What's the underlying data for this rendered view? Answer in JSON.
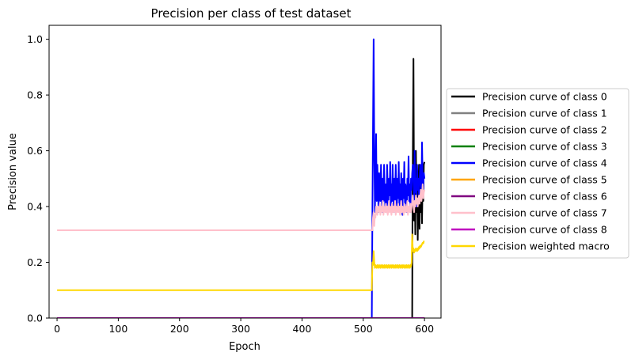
{
  "chart_data": {
    "type": "line",
    "title": "Precision per class of test dataset",
    "xlabel": "Epoch",
    "ylabel": "Precision value",
    "xlim": [
      -13,
      627
    ],
    "ylim": [
      0,
      1.05
    ],
    "xticks": [
      0,
      100,
      200,
      300,
      400,
      500,
      600
    ],
    "yticks": [
      0.0,
      0.2,
      0.4,
      0.6,
      0.8,
      1.0
    ],
    "grid": false,
    "legend_placement": "outside-right",
    "series": [
      {
        "name": "Precision curve of class 0",
        "color": "#000000",
        "x": [
          0,
          580,
          580.5,
          582,
          583,
          584,
          585,
          586,
          587,
          588,
          589,
          590,
          591,
          592,
          593,
          594,
          595,
          596,
          597,
          598,
          599,
          600
        ],
        "y": [
          0,
          0,
          0.4,
          0.93,
          0.35,
          0.55,
          0.3,
          0.6,
          0.38,
          0.5,
          0.28,
          0.45,
          0.55,
          0.32,
          0.5,
          0.38,
          0.55,
          0.34,
          0.5,
          0.42,
          0.55,
          0.56
        ]
      },
      {
        "name": "Precision curve of class 1",
        "color": "#808080",
        "x": [
          0,
          600
        ],
        "y": [
          0,
          0
        ]
      },
      {
        "name": "Precision curve of class 2",
        "color": "#ff0000",
        "x": [
          0,
          600
        ],
        "y": [
          0,
          0
        ]
      },
      {
        "name": "Precision curve of class 3",
        "color": "#008000",
        "x": [
          0,
          600
        ],
        "y": [
          0,
          0
        ]
      },
      {
        "name": "Precision curve of class 4",
        "color": "#0000ff",
        "x": [
          0,
          514,
          515,
          517,
          518,
          519,
          520,
          521,
          522,
          523,
          524,
          525,
          526,
          527,
          528,
          529,
          530,
          531,
          532,
          533,
          534,
          535,
          536,
          537,
          538,
          539,
          540,
          541,
          542,
          543,
          544,
          545,
          546,
          547,
          548,
          549,
          550,
          551,
          552,
          553,
          554,
          555,
          556,
          557,
          558,
          559,
          560,
          561,
          562,
          563,
          564,
          565,
          566,
          567,
          568,
          569,
          570,
          571,
          572,
          573,
          574,
          575,
          576,
          577,
          578,
          579,
          580,
          581,
          582,
          583,
          584,
          585,
          586,
          587,
          588,
          589,
          590,
          591,
          592,
          593,
          594,
          595,
          596,
          597,
          598,
          599,
          600
        ],
        "y": [
          0,
          0,
          0.4,
          1.0,
          0.6,
          0.38,
          0.5,
          0.66,
          0.42,
          0.55,
          0.48,
          0.38,
          0.52,
          0.45,
          0.42,
          0.55,
          0.44,
          0.38,
          0.5,
          0.42,
          0.55,
          0.45,
          0.4,
          0.48,
          0.38,
          0.55,
          0.46,
          0.4,
          0.5,
          0.44,
          0.56,
          0.4,
          0.48,
          0.42,
          0.55,
          0.44,
          0.38,
          0.5,
          0.42,
          0.55,
          0.46,
          0.39,
          0.5,
          0.43,
          0.56,
          0.4,
          0.48,
          0.42,
          0.52,
          0.44,
          0.37,
          0.5,
          0.43,
          0.56,
          0.41,
          0.48,
          0.46,
          0.38,
          0.5,
          0.44,
          0.58,
          0.42,
          0.48,
          0.38,
          0.5,
          0.46,
          0.52,
          0.55,
          0.5,
          0.42,
          0.6,
          0.45,
          0.5,
          0.4,
          0.55,
          0.46,
          0.5,
          0.44,
          0.48,
          0.55,
          0.5,
          0.45,
          0.63,
          0.5,
          0.46,
          0.52,
          0.5
        ]
      },
      {
        "name": "Precision curve of class 5",
        "color": "#ffa500",
        "x": [
          0,
          600
        ],
        "y": [
          0,
          0
        ]
      },
      {
        "name": "Precision curve of class 6",
        "color": "#800080",
        "x": [
          0,
          600
        ],
        "y": [
          0,
          0
        ]
      },
      {
        "name": "Precision curve of class 7",
        "color": "#ffc0cb",
        "x": [
          0,
          515,
          516,
          517,
          518,
          519,
          520,
          521,
          522,
          523,
          524,
          525,
          526,
          527,
          528,
          529,
          530,
          531,
          532,
          533,
          534,
          535,
          536,
          537,
          538,
          539,
          540,
          541,
          542,
          543,
          544,
          545,
          546,
          547,
          548,
          549,
          550,
          551,
          552,
          553,
          554,
          555,
          556,
          557,
          558,
          559,
          560,
          561,
          562,
          563,
          564,
          565,
          566,
          567,
          568,
          569,
          570,
          571,
          572,
          573,
          574,
          575,
          576,
          577,
          578,
          579,
          580,
          581,
          582,
          583,
          584,
          585,
          586,
          587,
          588,
          589,
          590,
          591,
          592,
          593,
          594,
          595,
          596,
          597,
          598,
          599,
          600
        ],
        "y": [
          0.315,
          0.315,
          0.36,
          0.38,
          0.33,
          0.37,
          0.36,
          0.4,
          0.38,
          0.37,
          0.4,
          0.39,
          0.38,
          0.41,
          0.37,
          0.4,
          0.38,
          0.39,
          0.42,
          0.37,
          0.4,
          0.39,
          0.38,
          0.41,
          0.38,
          0.4,
          0.37,
          0.39,
          0.42,
          0.38,
          0.4,
          0.39,
          0.37,
          0.41,
          0.38,
          0.4,
          0.38,
          0.39,
          0.42,
          0.37,
          0.4,
          0.39,
          0.38,
          0.41,
          0.38,
          0.4,
          0.37,
          0.39,
          0.42,
          0.38,
          0.4,
          0.39,
          0.37,
          0.41,
          0.38,
          0.4,
          0.38,
          0.39,
          0.42,
          0.37,
          0.4,
          0.39,
          0.38,
          0.41,
          0.38,
          0.4,
          0.42,
          0.44,
          0.4,
          0.38,
          0.42,
          0.4,
          0.44,
          0.41,
          0.43,
          0.4,
          0.42,
          0.44,
          0.41,
          0.43,
          0.46,
          0.42,
          0.44,
          0.48,
          0.43,
          0.45,
          0.46
        ]
      },
      {
        "name": "Precision curve of class 8",
        "color": "#bf00bf",
        "x": [
          0,
          600
        ],
        "y": [
          0,
          0
        ]
      },
      {
        "name": "Precision weighted macro",
        "color": "#ffd700",
        "x": [
          0,
          514,
          515,
          516,
          517,
          518,
          519,
          520,
          521,
          522,
          523,
          524,
          525,
          526,
          527,
          528,
          529,
          530,
          531,
          532,
          533,
          534,
          535,
          536,
          537,
          538,
          539,
          540,
          541,
          542,
          543,
          544,
          545,
          546,
          547,
          548,
          549,
          550,
          551,
          552,
          553,
          554,
          555,
          556,
          557,
          558,
          559,
          560,
          561,
          562,
          563,
          564,
          565,
          566,
          567,
          568,
          569,
          570,
          571,
          572,
          573,
          574,
          575,
          576,
          577,
          578,
          579,
          580,
          581,
          582,
          583,
          584,
          585,
          586,
          587,
          588,
          589,
          590,
          591,
          592,
          593,
          594,
          595,
          596,
          597,
          598,
          599,
          600
        ],
        "y": [
          0.1,
          0.1,
          0.2,
          0.19,
          0.24,
          0.2,
          0.18,
          0.19,
          0.185,
          0.18,
          0.19,
          0.185,
          0.18,
          0.19,
          0.185,
          0.18,
          0.19,
          0.185,
          0.18,
          0.19,
          0.185,
          0.18,
          0.19,
          0.185,
          0.18,
          0.19,
          0.185,
          0.18,
          0.19,
          0.185,
          0.18,
          0.19,
          0.185,
          0.18,
          0.19,
          0.185,
          0.18,
          0.19,
          0.185,
          0.18,
          0.19,
          0.185,
          0.18,
          0.19,
          0.185,
          0.18,
          0.19,
          0.185,
          0.18,
          0.19,
          0.185,
          0.18,
          0.19,
          0.185,
          0.18,
          0.19,
          0.185,
          0.18,
          0.19,
          0.185,
          0.18,
          0.19,
          0.185,
          0.18,
          0.19,
          0.185,
          0.2,
          0.3,
          0.24,
          0.25,
          0.235,
          0.245,
          0.24,
          0.25,
          0.245,
          0.24,
          0.25,
          0.245,
          0.255,
          0.25,
          0.26,
          0.255,
          0.26,
          0.265,
          0.27,
          0.268,
          0.275,
          0.275
        ]
      }
    ]
  }
}
